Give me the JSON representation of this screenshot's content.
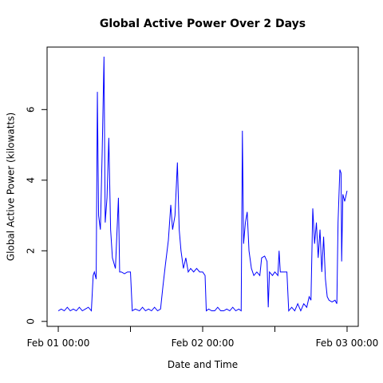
{
  "chart_data": {
    "type": "line",
    "title": "Global Active Power Over 2 Days",
    "xlabel": "Date and Time",
    "ylabel": "Global Active Power (kilowatts)",
    "x": [
      0,
      0.5,
      1,
      1.5,
      2,
      2.5,
      3,
      3.5,
      4,
      4.5,
      5,
      5.5,
      5.8,
      6,
      6.3,
      6.5,
      6.7,
      7,
      7.3,
      7.6,
      7.8,
      8.1,
      8.4,
      8.7,
      9,
      9.5,
      10,
      10.2,
      10.5,
      11,
      11.5,
      12,
      12.3,
      12.8,
      13.5,
      14,
      14.5,
      15,
      15.5,
      16,
      16.5,
      17,
      17.4,
      17.8,
      18.3,
      18.7,
      19,
      19.4,
      19.8,
      20.1,
      20.4,
      20.8,
      21.2,
      21.6,
      22,
      22.5,
      23,
      23.5,
      24,
      24.4,
      24.6,
      25,
      25.5,
      26,
      26.5,
      27,
      27.5,
      28,
      28.5,
      29,
      29.5,
      30,
      30.4,
      30.6,
      30.8,
      31.1,
      31.4,
      31.7,
      32.1,
      32.5,
      33,
      33.5,
      33.8,
      34.3,
      34.7,
      34.9,
      35.1,
      35.6,
      36,
      36.5,
      36.7,
      36.9,
      37.5,
      38,
      38.3,
      38.8,
      39.3,
      39.8,
      40.3,
      40.8,
      41.3,
      41.7,
      42,
      42.3,
      42.6,
      42.9,
      43.2,
      43.5,
      43.8,
      44.1,
      44.4,
      44.7,
      45,
      45.5,
      46,
      46.3,
      46.5,
      46.8,
      47,
      47.1,
      47.3,
      47.6,
      48
    ],
    "series": [
      {
        "name": "Global Active Power",
        "color": "#0000ff",
        "values": [
          0.3,
          0.35,
          0.3,
          0.4,
          0.3,
          0.35,
          0.3,
          0.4,
          0.3,
          0.35,
          0.4,
          0.3,
          1.3,
          1.4,
          1.2,
          6.5,
          3.0,
          2.6,
          4.8,
          7.5,
          2.8,
          3.5,
          5.2,
          2.6,
          1.8,
          1.5,
          3.5,
          1.4,
          1.4,
          1.35,
          1.4,
          1.4,
          0.3,
          0.35,
          0.3,
          0.4,
          0.3,
          0.35,
          0.3,
          0.4,
          0.3,
          0.35,
          1.0,
          1.6,
          2.3,
          3.3,
          2.6,
          3.0,
          4.5,
          2.6,
          2.0,
          1.5,
          1.8,
          1.4,
          1.5,
          1.4,
          1.5,
          1.4,
          1.4,
          1.3,
          0.3,
          0.35,
          0.3,
          0.3,
          0.4,
          0.3,
          0.3,
          0.35,
          0.3,
          0.4,
          0.3,
          0.35,
          0.3,
          5.4,
          2.2,
          2.8,
          3.1,
          2.0,
          1.5,
          1.3,
          1.4,
          1.3,
          1.8,
          1.85,
          1.7,
          0.4,
          1.4,
          1.3,
          1.4,
          1.3,
          2.0,
          1.4,
          1.4,
          1.4,
          0.3,
          0.4,
          0.3,
          0.5,
          0.3,
          0.5,
          0.4,
          0.7,
          0.6,
          3.2,
          2.2,
          2.8,
          1.8,
          2.6,
          1.4,
          2.4,
          1.2,
          0.7,
          0.6,
          0.55,
          0.6,
          0.5,
          2.8,
          4.3,
          4.2,
          1.7,
          3.6,
          3.4,
          3.7
        ]
      }
    ],
    "xlim": [
      -1.86,
      49.86
    ],
    "xticks": [
      {
        "value": 0,
        "label": "Feb 01 00:00"
      },
      {
        "value": 12,
        "label": null
      },
      {
        "value": 24,
        "label": "Feb 02 00:00"
      },
      {
        "value": 36,
        "label": null
      },
      {
        "value": 48,
        "label": "Feb 03 00:00"
      }
    ],
    "ylim": [
      -0.14,
      7.77
    ],
    "yticks": [
      0,
      2,
      4,
      6
    ]
  }
}
